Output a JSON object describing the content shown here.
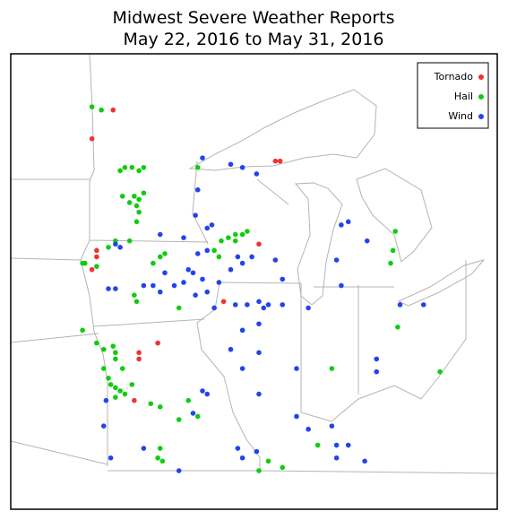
{
  "title": [
    "Midwest Severe Weather Reports",
    "May 22, 2016 to May 31, 2016"
  ],
  "series": [
    {
      "name": "Tornado",
      "color": "#ee3333",
      "lon": [
        -95.5,
        -96.4,
        -88.6,
        -88.4,
        -96.2,
        -96.2,
        -96.4,
        -89.3,
        -90.8,
        -93.6,
        -94.4,
        -94.4,
        -94.6
      ],
      "lat": [
        47.8,
        46.9,
        46.2,
        46.2,
        43.4,
        43.2,
        42.8,
        43.6,
        41.8,
        40.5,
        40.2,
        40.0,
        38.7
      ]
    },
    {
      "name": "Hail",
      "color": "#11cc11",
      "lon": [
        -96.4,
        -96.0,
        -95.2,
        -95.0,
        -94.7,
        -94.4,
        -94.2,
        -95.1,
        -94.8,
        -94.6,
        -94.4,
        -94.2,
        -94.5,
        -94.4,
        -94.5,
        -95.4,
        -94.8,
        -95.7,
        -96.7,
        -96.8,
        -96.2,
        -93.5,
        -93.8,
        -93.3,
        -94.6,
        -94.5,
        -92.7,
        -91.9,
        -91.2,
        -90.9,
        -90.6,
        -90.3,
        -90.0,
        -90.3,
        -89.8,
        -91.0,
        -96.8,
        -96.2,
        -95.9,
        -95.5,
        -95.4,
        -95.9,
        -95.7,
        -95.6,
        -95.4,
        -95.2,
        -95.4,
        -95.0,
        -94.7,
        -95.4,
        -95.1,
        -93.9,
        -93.5,
        -92.7,
        -92.3,
        -91.9,
        -93.5,
        -93.6,
        -93.4,
        -88.9,
        -88.3,
        -83.5,
        -83.6,
        -83.7,
        -83.4,
        -86.2,
        -81.6,
        -86.8,
        -89.3
      ],
      "lat": [
        47.9,
        47.8,
        45.9,
        46.0,
        46.0,
        45.9,
        46.0,
        45.1,
        44.9,
        45.1,
        45.0,
        45.2,
        44.8,
        44.6,
        44.3,
        43.7,
        43.7,
        43.5,
        43.0,
        43.0,
        42.9,
        43.2,
        43.0,
        43.3,
        42.0,
        41.8,
        41.6,
        46.0,
        43.4,
        43.7,
        43.8,
        43.9,
        43.9,
        43.7,
        44.0,
        43.2,
        40.9,
        40.5,
        40.3,
        40.4,
        40.2,
        39.7,
        39.4,
        39.2,
        39.1,
        39.0,
        38.8,
        38.9,
        39.2,
        40.0,
        39.7,
        38.6,
        38.5,
        38.1,
        38.7,
        38.2,
        37.2,
        36.9,
        36.8,
        36.8,
        36.6,
        44.0,
        43.4,
        43.0,
        41.0,
        39.7,
        39.6,
        37.3,
        36.5
      ]
    },
    {
      "name": "Wind",
      "color": "#2244ee",
      "lon": [
        -91.7,
        -90.5,
        -90.0,
        -89.4,
        -91.9,
        -92.0,
        -91.5,
        -91.3,
        -93.5,
        -92.5,
        -95.4,
        -95.2,
        -91.9,
        -91.5,
        -90.2,
        -90.0,
        -89.6,
        -90.5,
        -92.3,
        -92.1,
        -93.3,
        -93.5,
        -93.8,
        -92.9,
        -92.5,
        -91.7,
        -91.5,
        -91.0,
        -92.0,
        -95.7,
        -95.4,
        -94.2,
        -91.2,
        -90.3,
        -89.8,
        -89.3,
        -88.9,
        -89.1,
        -88.3,
        -87.2,
        -88.6,
        -88.3,
        -85.8,
        -85.5,
        -86.0,
        -85.8,
        -84.7,
        -90.0,
        -90.5,
        -89.3,
        -90.0,
        -89.3,
        -87.7,
        -91.7,
        -91.5,
        -92.1,
        -95.8,
        -95.9,
        -95.6,
        -94.2,
        -92.7,
        -90.2,
        -90.0,
        -89.4,
        -87.7,
        -87.2,
        -86.2,
        -86.0,
        -85.5,
        -84.8,
        -84.3,
        -84.3,
        -83.3,
        -82.3,
        -86.0,
        -89.3
      ],
      "lat": [
        46.3,
        46.1,
        46.0,
        45.8,
        45.3,
        44.5,
        44.1,
        44.2,
        43.9,
        43.8,
        43.6,
        43.5,
        43.3,
        43.4,
        43.2,
        43.0,
        43.2,
        42.8,
        42.8,
        42.7,
        42.7,
        42.1,
        42.3,
        42.3,
        42.4,
        42.5,
        42.1,
        42.4,
        42.0,
        42.2,
        42.2,
        42.3,
        41.6,
        41.7,
        41.7,
        41.8,
        41.7,
        41.6,
        41.7,
        41.6,
        43.1,
        42.5,
        44.2,
        44.3,
        43.1,
        42.3,
        43.7,
        40.9,
        40.3,
        40.2,
        39.7,
        38.9,
        39.7,
        39.0,
        38.9,
        38.3,
        38.7,
        37.9,
        36.9,
        37.2,
        36.5,
        37.2,
        36.9,
        37.1,
        38.2,
        37.8,
        37.9,
        37.3,
        37.3,
        36.8,
        40.0,
        39.6,
        41.7,
        41.7,
        36.9,
        41.1
      ]
    }
  ]
}
